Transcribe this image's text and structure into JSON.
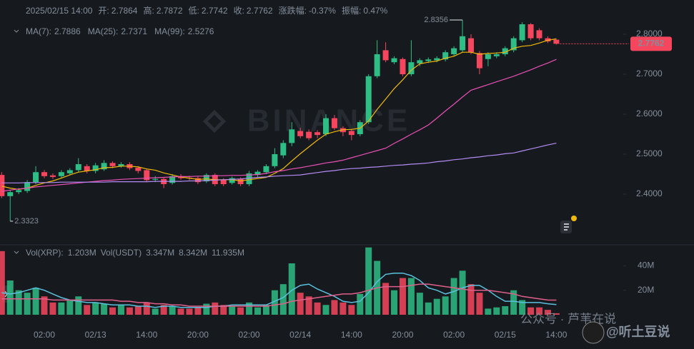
{
  "chart_data": {
    "type": "candlestick",
    "info": [
      {
        "label": "开:",
        "value": 2.7864
      },
      {
        "label": "高:",
        "value": 2.7872
      },
      {
        "label": "低:",
        "value": 2.7742
      },
      {
        "label": "收:",
        "value": 2.7762
      },
      {
        "label": "涨跌幅:",
        "value": "-0.37%"
      },
      {
        "label": "振幅:",
        "value": "0.47%"
      }
    ],
    "timestamp": "2025/02/15 14:00",
    "watermark": "BINANCE",
    "up_color": "#2ebd85",
    "down_color": "#f6465d",
    "categories": [
      null,
      null,
      null,
      null,
      null,
      "02:00",
      null,
      null,
      null,
      null,
      null,
      "02/13",
      null,
      null,
      null,
      null,
      null,
      "14:00",
      null,
      null,
      null,
      null,
      null,
      "20:00",
      null,
      null,
      null,
      null,
      null,
      "02:00",
      null,
      null,
      null,
      null,
      null,
      "02/14",
      null,
      null,
      null,
      null,
      null,
      "14:00",
      null,
      null,
      null,
      null,
      null,
      "20:00",
      null,
      null,
      null,
      null,
      null,
      "02:00",
      null,
      null,
      null,
      null,
      null,
      "02/15",
      null,
      null,
      null,
      null,
      null,
      "14:00"
    ],
    "open": [
      2.448,
      2.395,
      2.405,
      2.408,
      2.43,
      2.455,
      2.447,
      2.445,
      2.452,
      2.46,
      2.47,
      2.458,
      2.462,
      2.478,
      2.47,
      2.475,
      2.466,
      2.46,
      2.436,
      2.438,
      2.428,
      2.445,
      2.441,
      2.44,
      2.432,
      2.448,
      2.435,
      2.428,
      2.438,
      2.425,
      2.448,
      2.455,
      2.47,
      2.497,
      2.528,
      2.558,
      2.556,
      2.555,
      2.55,
      2.59,
      2.565,
      2.558,
      2.55,
      2.58,
      2.695,
      2.76,
      2.73,
      2.738,
      2.7,
      2.727,
      2.733,
      2.735,
      2.737,
      2.75,
      2.76,
      2.79,
      2.753,
      2.738,
      2.745,
      2.75,
      2.76,
      2.785,
      2.825,
      2.81,
      2.79,
      2.7864
    ],
    "high": [
      2.455,
      2.41,
      2.415,
      2.435,
      2.47,
      2.46,
      2.452,
      2.46,
      2.465,
      2.49,
      2.475,
      2.478,
      2.485,
      2.482,
      2.48,
      2.48,
      2.47,
      2.463,
      2.445,
      2.442,
      2.45,
      2.45,
      2.446,
      2.444,
      2.452,
      2.452,
      2.44,
      2.444,
      2.442,
      2.458,
      2.46,
      2.475,
      2.515,
      2.535,
      2.58,
      2.566,
      2.562,
      2.56,
      2.6,
      2.598,
      2.57,
      2.562,
      2.585,
      2.7,
      2.785,
      2.78,
      2.745,
      2.742,
      2.785,
      2.74,
      2.742,
      2.745,
      2.76,
      2.77,
      2.8356,
      2.8,
      2.758,
      2.755,
      2.755,
      2.77,
      2.795,
      2.83,
      2.828,
      2.815,
      2.795,
      2.7872
    ],
    "low": [
      2.39,
      2.3323,
      2.4,
      2.403,
      2.425,
      2.44,
      2.438,
      2.44,
      2.447,
      2.455,
      2.452,
      2.452,
      2.458,
      2.465,
      2.466,
      2.46,
      2.452,
      2.43,
      2.43,
      2.415,
      2.424,
      2.436,
      2.435,
      2.425,
      2.428,
      2.42,
      2.42,
      2.424,
      2.42,
      2.42,
      2.443,
      2.45,
      2.465,
      2.49,
      2.52,
      2.54,
      2.535,
      2.54,
      2.545,
      2.56,
      2.545,
      2.535,
      2.545,
      2.575,
      2.69,
      2.73,
      2.725,
      2.695,
      2.695,
      2.72,
      2.728,
      2.73,
      2.732,
      2.745,
      2.755,
      2.75,
      2.7,
      2.72,
      2.74,
      2.745,
      2.755,
      2.78,
      2.785,
      2.785,
      2.778,
      2.7742
    ],
    "close": [
      2.395,
      2.405,
      2.41,
      2.43,
      2.455,
      2.445,
      2.443,
      2.455,
      2.46,
      2.475,
      2.458,
      2.472,
      2.478,
      2.47,
      2.475,
      2.465,
      2.458,
      2.435,
      2.438,
      2.425,
      2.445,
      2.44,
      2.44,
      2.43,
      2.448,
      2.425,
      2.425,
      2.44,
      2.425,
      2.452,
      2.456,
      2.47,
      2.5,
      2.528,
      2.562,
      2.545,
      2.54,
      2.548,
      2.59,
      2.565,
      2.555,
      2.548,
      2.58,
      2.695,
      2.75,
      2.735,
      2.74,
      2.7,
      2.73,
      2.735,
      2.737,
      2.74,
      2.755,
      2.765,
      2.795,
      2.755,
      2.715,
      2.75,
      2.75,
      2.765,
      2.79,
      2.825,
      2.79,
      2.79,
      2.782,
      2.7762
    ],
    "ylim": [
      2.2786,
      2.8857
    ],
    "yticks": [
      {
        "value": 2.4,
        "label": "2.4000"
      },
      {
        "value": 2.5,
        "label": "2.5000"
      },
      {
        "value": 2.6,
        "label": "2.6000"
      },
      {
        "value": 2.7,
        "label": "2.7000"
      },
      {
        "value": 2.8,
        "label": "2.8000"
      }
    ],
    "grid": false,
    "last_price": {
      "value": 2.7762,
      "label": "2.7762"
    },
    "max_label": 2.8356,
    "min_label": 2.3323,
    "series": [
      {
        "name": "MA(7):",
        "color": "#f0b90b",
        "latest": 2.7886,
        "values": [
          2.42,
          2.415,
          2.412,
          2.415,
          2.422,
          2.428,
          2.433,
          2.44,
          2.448,
          2.455,
          2.458,
          2.461,
          2.466,
          2.467,
          2.47,
          2.47,
          2.468,
          2.463,
          2.46,
          2.453,
          2.448,
          2.443,
          2.44,
          2.437,
          2.438,
          2.436,
          2.436,
          2.436,
          2.433,
          2.436,
          2.439,
          2.442,
          2.452,
          2.464,
          2.483,
          2.501,
          2.518,
          2.535,
          2.55,
          2.556,
          2.561,
          2.562,
          2.565,
          2.583,
          2.612,
          2.638,
          2.664,
          2.686,
          2.71,
          2.726,
          2.73,
          2.733,
          2.74,
          2.745,
          2.755,
          2.755,
          2.75,
          2.752,
          2.753,
          2.755,
          2.765,
          2.77,
          2.772,
          2.778,
          2.785,
          2.7886
        ]
      },
      {
        "name": "MA(25):",
        "color": "#e94fb5",
        "latest": 2.7371,
        "values": [
          2.407,
          2.41,
          2.413,
          2.415,
          2.418,
          2.42,
          2.422,
          2.424,
          2.426,
          2.428,
          2.43,
          2.432,
          2.434,
          2.435,
          2.437,
          2.438,
          2.439,
          2.44,
          2.441,
          2.442,
          2.443,
          2.444,
          2.444,
          2.445,
          2.445,
          2.446,
          2.446,
          2.447,
          2.447,
          2.448,
          2.449,
          2.452,
          2.456,
          2.459,
          2.463,
          2.466,
          2.47,
          2.474,
          2.478,
          2.481,
          2.485,
          2.491,
          2.497,
          2.503,
          2.509,
          2.515,
          2.527,
          2.538,
          2.55,
          2.561,
          2.573,
          2.59,
          2.608,
          2.625,
          2.643,
          2.66,
          2.667,
          2.674,
          2.681,
          2.688,
          2.695,
          2.703,
          2.711,
          2.72,
          2.728,
          2.7371
        ]
      },
      {
        "name": "MA(99):",
        "color": "#b48bf5",
        "latest": 2.5276,
        "values": [
          2.428,
          2.428,
          2.428,
          2.429,
          2.429,
          2.429,
          2.429,
          2.43,
          2.43,
          2.43,
          2.43,
          2.43,
          2.43,
          2.431,
          2.431,
          2.431,
          2.431,
          2.431,
          2.432,
          2.432,
          2.432,
          2.432,
          2.433,
          2.433,
          2.434,
          2.435,
          2.436,
          2.437,
          2.438,
          2.44,
          2.442,
          2.443,
          2.445,
          2.446,
          2.447,
          2.448,
          2.451,
          2.454,
          2.457,
          2.459,
          2.462,
          2.464,
          2.465,
          2.467,
          2.468,
          2.47,
          2.472,
          2.473,
          2.475,
          2.476,
          2.478,
          2.481,
          2.483,
          2.486,
          2.488,
          2.491,
          2.493,
          2.496,
          2.498,
          2.501,
          2.503,
          2.508,
          2.513,
          2.518,
          2.523,
          2.5276
        ]
      }
    ],
    "volume": {
      "header": [
        {
          "text": "Vol(XRP):",
          "color": "#848e9c"
        },
        {
          "text": "1.203M",
          "color": "#eaecef"
        },
        {
          "text": "Vol(USDT)",
          "color": "#848e9c"
        },
        {
          "text": "3.347M",
          "color": "#eaecef"
        },
        {
          "text": "8.342M",
          "color": "#5bc0de"
        },
        {
          "text": "11.935M",
          "color": "#e0608a"
        }
      ],
      "ylim": [
        0,
        56
      ],
      "yticks": [
        {
          "value": 20,
          "label": "20M"
        },
        {
          "value": 40,
          "label": "40M"
        }
      ],
      "values": [
        52,
        28,
        20,
        18,
        22,
        15,
        10,
        10,
        12,
        15,
        8,
        10,
        9,
        6,
        8,
        6,
        7,
        10,
        5,
        8,
        7,
        5,
        5,
        6,
        9,
        10,
        8,
        7,
        6,
        10,
        6,
        8,
        20,
        25,
        42,
        18,
        15,
        10,
        8,
        12,
        10,
        8,
        17,
        55,
        44,
        26,
        20,
        30,
        30,
        18,
        10,
        13,
        15,
        30,
        36,
        25,
        18,
        5,
        6,
        7,
        20,
        12,
        6,
        6,
        4,
        1.203
      ],
      "series": [
        {
          "color": "#5bc0de",
          "values": [
            18,
            17,
            18,
            20,
            22,
            20,
            17,
            14,
            12,
            11,
            10,
            10,
            9,
            8,
            8,
            8,
            7,
            7,
            6,
            7,
            7,
            6,
            6,
            6,
            6,
            7,
            7,
            8,
            8,
            8,
            8,
            8,
            11,
            14,
            20,
            24,
            25,
            21,
            18,
            15,
            11,
            10,
            11,
            18,
            27,
            33,
            34,
            34,
            32,
            28,
            22,
            20,
            17,
            19,
            22,
            24,
            24,
            20,
            15,
            11,
            11,
            10,
            10,
            10,
            9,
            8.342
          ]
        },
        {
          "color": "#e0608a",
          "values": [
            13,
            13,
            13,
            13,
            13,
            13,
            12,
            12,
            12,
            12,
            12,
            12,
            12,
            12,
            11,
            11,
            10,
            10,
            9,
            9,
            8,
            8,
            7,
            7,
            7,
            7,
            7,
            7,
            7,
            7,
            7,
            7,
            8,
            9,
            11,
            12,
            13,
            14,
            15,
            16,
            17,
            17,
            18,
            20,
            22,
            23,
            23,
            23,
            24,
            25,
            25,
            24,
            23,
            22,
            21,
            20,
            20,
            20,
            19,
            18,
            17,
            15,
            14,
            13,
            12,
            11.935
          ]
        }
      ]
    },
    "overlay": {
      "account": "公众号 · 芦苇在说",
      "handle": "@听土豆说"
    }
  }
}
